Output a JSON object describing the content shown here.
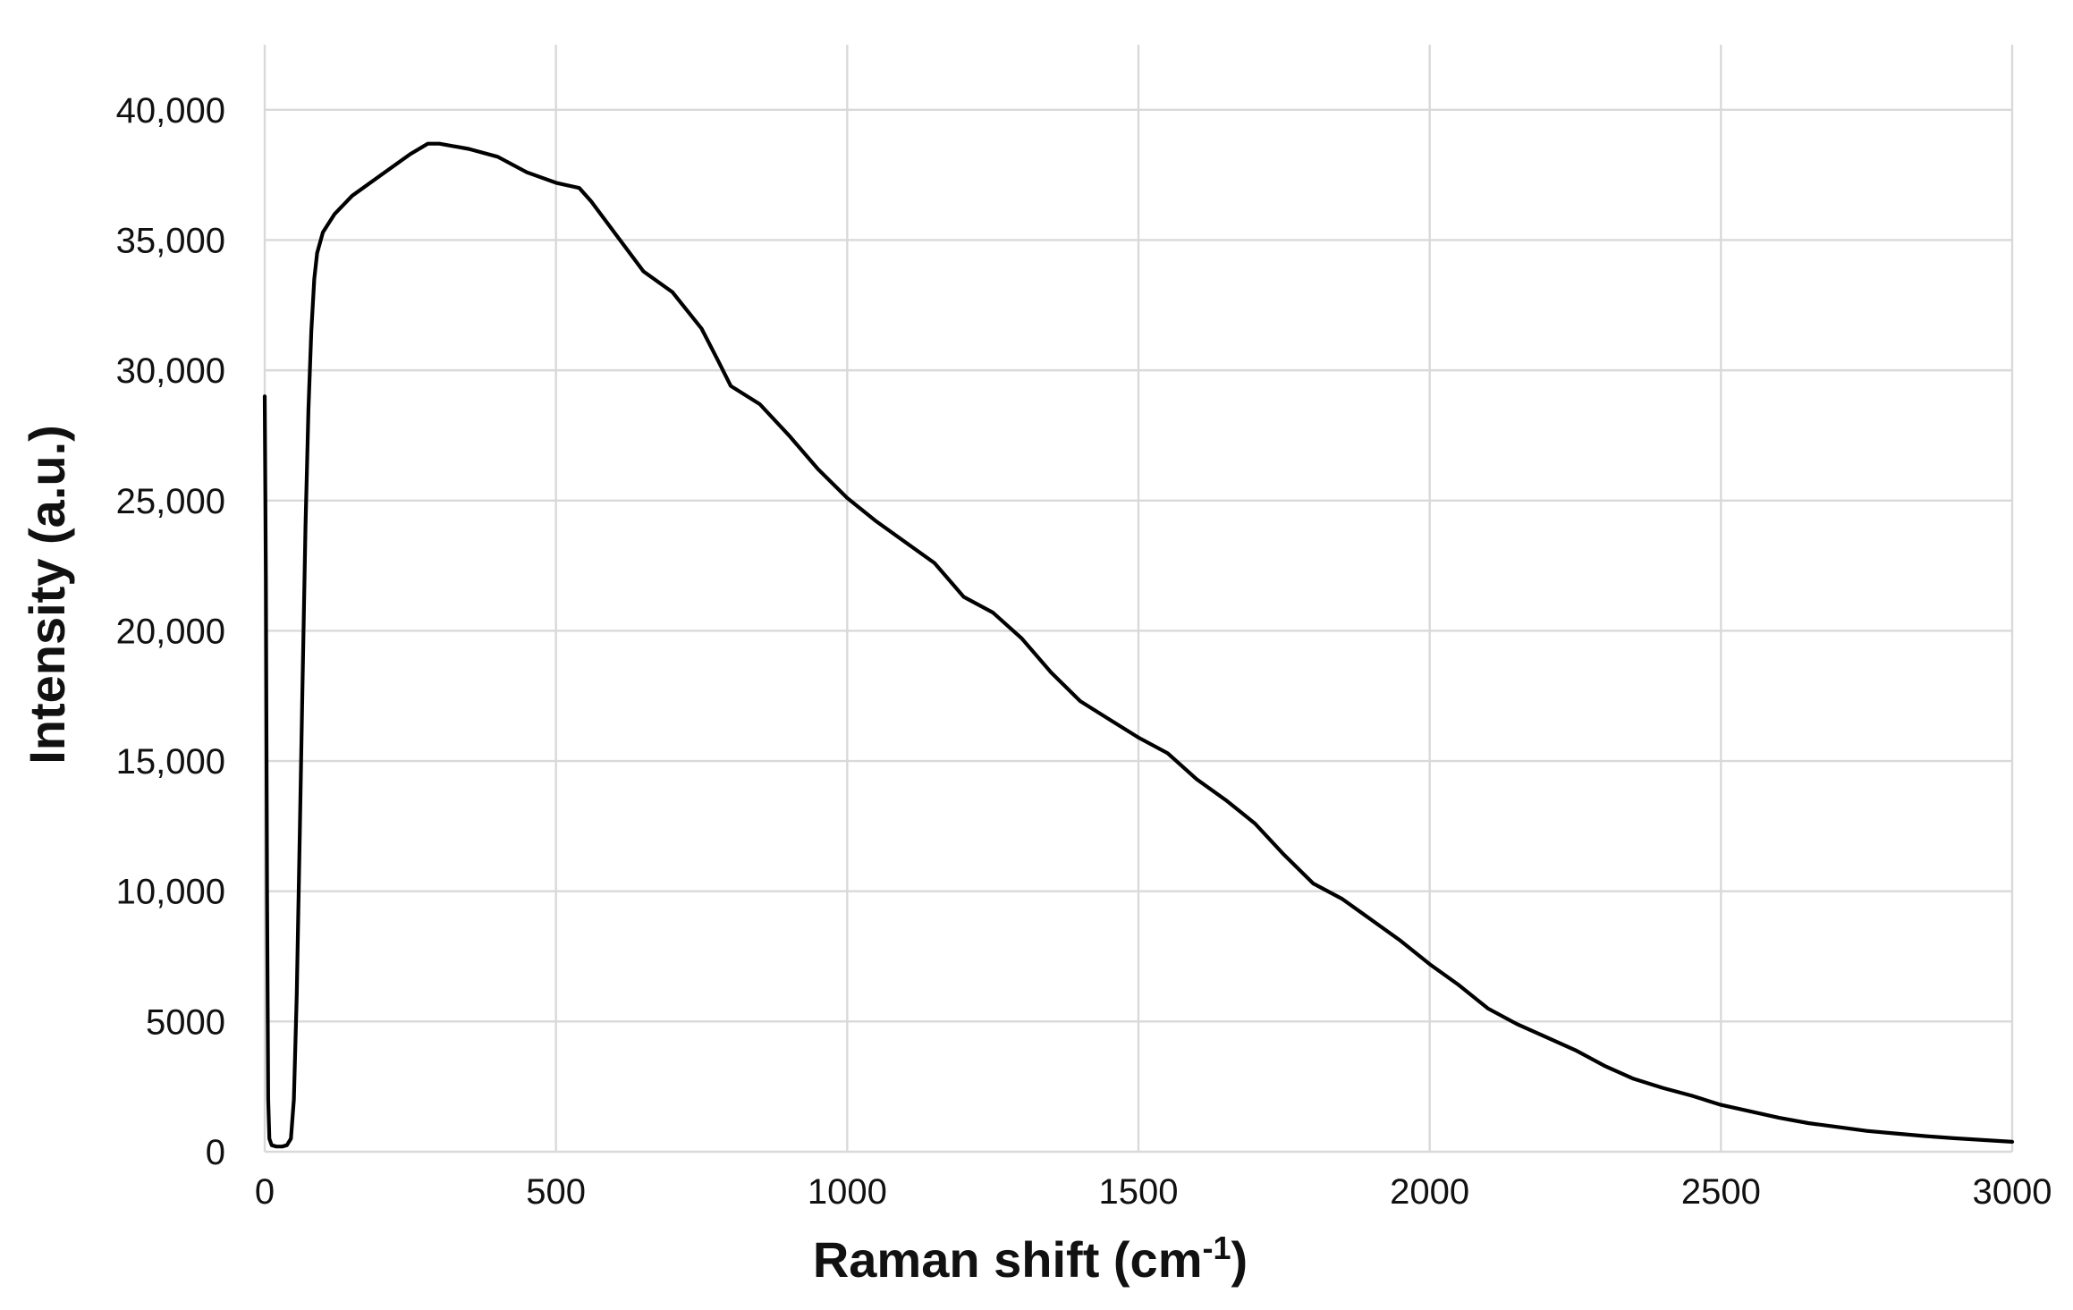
{
  "chart_data": {
    "type": "line",
    "xlabel_main": "Raman shift (cm",
    "xlabel_sup": "-1",
    "xlabel_end": ")",
    "ylabel": "Intensity (a.u.)",
    "xlim": [
      0,
      3000
    ],
    "ylim": [
      0,
      42500
    ],
    "grid": true,
    "x_ticks": [
      0,
      500,
      1000,
      1500,
      2000,
      2500,
      3000
    ],
    "x_tick_labels": [
      "0",
      "500",
      "1000",
      "1500",
      "2000",
      "2500",
      "3000"
    ],
    "y_ticks": [
      0,
      5000,
      10000,
      15000,
      20000,
      25000,
      30000,
      35000,
      40000
    ],
    "y_tick_labels": [
      "0",
      "5000",
      "10,000",
      "15,000",
      "20,000",
      "25,000",
      "30,000",
      "35,000",
      "40,000"
    ],
    "series": [
      {
        "color": "#000000",
        "points": [
          [
            0,
            29000
          ],
          [
            2,
            22000
          ],
          [
            4,
            10000
          ],
          [
            6,
            2000
          ],
          [
            8,
            500
          ],
          [
            12,
            250
          ],
          [
            20,
            200
          ],
          [
            30,
            200
          ],
          [
            38,
            250
          ],
          [
            45,
            500
          ],
          [
            50,
            2000
          ],
          [
            55,
            6000
          ],
          [
            60,
            12000
          ],
          [
            65,
            18000
          ],
          [
            70,
            24000
          ],
          [
            75,
            28500
          ],
          [
            80,
            31500
          ],
          [
            85,
            33500
          ],
          [
            90,
            34500
          ],
          [
            100,
            35300
          ],
          [
            120,
            36000
          ],
          [
            150,
            36700
          ],
          [
            200,
            37500
          ],
          [
            250,
            38300
          ],
          [
            280,
            38700
          ],
          [
            300,
            38700
          ],
          [
            350,
            38500
          ],
          [
            400,
            38200
          ],
          [
            450,
            37600
          ],
          [
            500,
            37200
          ],
          [
            540,
            37000
          ],
          [
            560,
            36500
          ],
          [
            600,
            35300
          ],
          [
            650,
            33800
          ],
          [
            700,
            33000
          ],
          [
            750,
            31600
          ],
          [
            780,
            30300
          ],
          [
            800,
            29400
          ],
          [
            850,
            28700
          ],
          [
            900,
            27500
          ],
          [
            950,
            26200
          ],
          [
            1000,
            25100
          ],
          [
            1050,
            24200
          ],
          [
            1100,
            23400
          ],
          [
            1150,
            22600
          ],
          [
            1200,
            21300
          ],
          [
            1250,
            20700
          ],
          [
            1300,
            19700
          ],
          [
            1350,
            18400
          ],
          [
            1400,
            17300
          ],
          [
            1450,
            16600
          ],
          [
            1500,
            15900
          ],
          [
            1550,
            15300
          ],
          [
            1600,
            14300
          ],
          [
            1650,
            13500
          ],
          [
            1700,
            12600
          ],
          [
            1750,
            11400
          ],
          [
            1800,
            10300
          ],
          [
            1850,
            9700
          ],
          [
            1900,
            8900
          ],
          [
            1950,
            8100
          ],
          [
            2000,
            7200
          ],
          [
            2050,
            6400
          ],
          [
            2100,
            5500
          ],
          [
            2150,
            4900
          ],
          [
            2200,
            4400
          ],
          [
            2250,
            3900
          ],
          [
            2300,
            3300
          ],
          [
            2350,
            2800
          ],
          [
            2400,
            2450
          ],
          [
            2450,
            2150
          ],
          [
            2500,
            1800
          ],
          [
            2550,
            1550
          ],
          [
            2600,
            1300
          ],
          [
            2650,
            1100
          ],
          [
            2700,
            950
          ],
          [
            2750,
            800
          ],
          [
            2800,
            700
          ],
          [
            2850,
            600
          ],
          [
            2900,
            520
          ],
          [
            2950,
            450
          ],
          [
            3000,
            380
          ]
        ]
      }
    ]
  }
}
